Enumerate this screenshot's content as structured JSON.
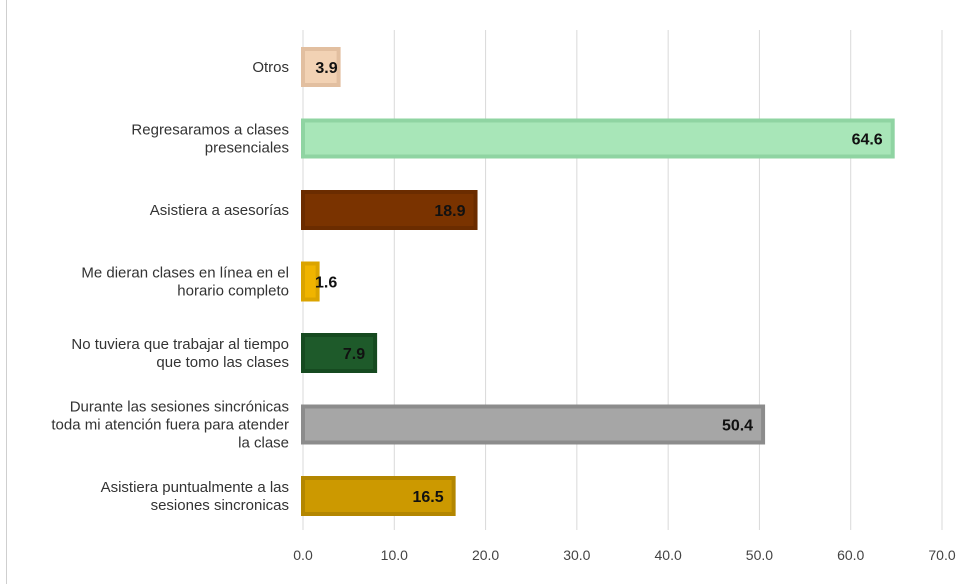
{
  "chart_data": {
    "type": "bar",
    "orientation": "horizontal",
    "categories": [
      "Otros",
      "Regresaramos a clases presenciales",
      "Asistiera a asesorías",
      "Me dieran clases en línea en el horario completo",
      "No tuviera que trabajar al tiempo que tomo las clases",
      "Durante las sesiones sincrónicas toda mi atención fuera para atender la clase",
      "Asistiera puntualmente a las sesiones sincronicas"
    ],
    "category_lines": [
      [
        "Otros"
      ],
      [
        "Regresaramos a clases",
        "presenciales"
      ],
      [
        "Asistiera a asesorías"
      ],
      [
        "Me dieran clases en línea en el",
        "horario completo"
      ],
      [
        "No tuviera que trabajar al tiempo",
        "que tomo las clases"
      ],
      [
        "Durante las sesiones sincrónicas",
        "toda mi atención fuera para atender",
        "la clase"
      ],
      [
        "Asistiera puntualmente a las",
        "sesiones sincronicas"
      ]
    ],
    "values": [
      3.9,
      64.6,
      18.9,
      1.6,
      7.9,
      50.4,
      16.5
    ],
    "value_labels": [
      "3.9",
      "64.6",
      "18.9",
      "1.6",
      "7.9",
      "50.4",
      "16.5"
    ],
    "colors": [
      "#f2d2b4",
      "#a8e6b8",
      "#7a3300",
      "#f0b400",
      "#1e5a2a",
      "#a6a6a6",
      "#cc9900"
    ],
    "border_colors": [
      "#e2bfa0",
      "#8fd4a2",
      "#6b2c00",
      "#dba400",
      "#164a20",
      "#8c8c8c",
      "#b38600"
    ],
    "xlim": [
      0,
      70
    ],
    "xticks": [
      0,
      10,
      20,
      30,
      40,
      50,
      60,
      70
    ],
    "xtick_labels": [
      "0.0",
      "10.0",
      "20.0",
      "30.0",
      "40.0",
      "50.0",
      "60.0",
      "70.0"
    ],
    "grid": true,
    "legend": "none",
    "title": "",
    "xlabel": "",
    "ylabel": ""
  }
}
